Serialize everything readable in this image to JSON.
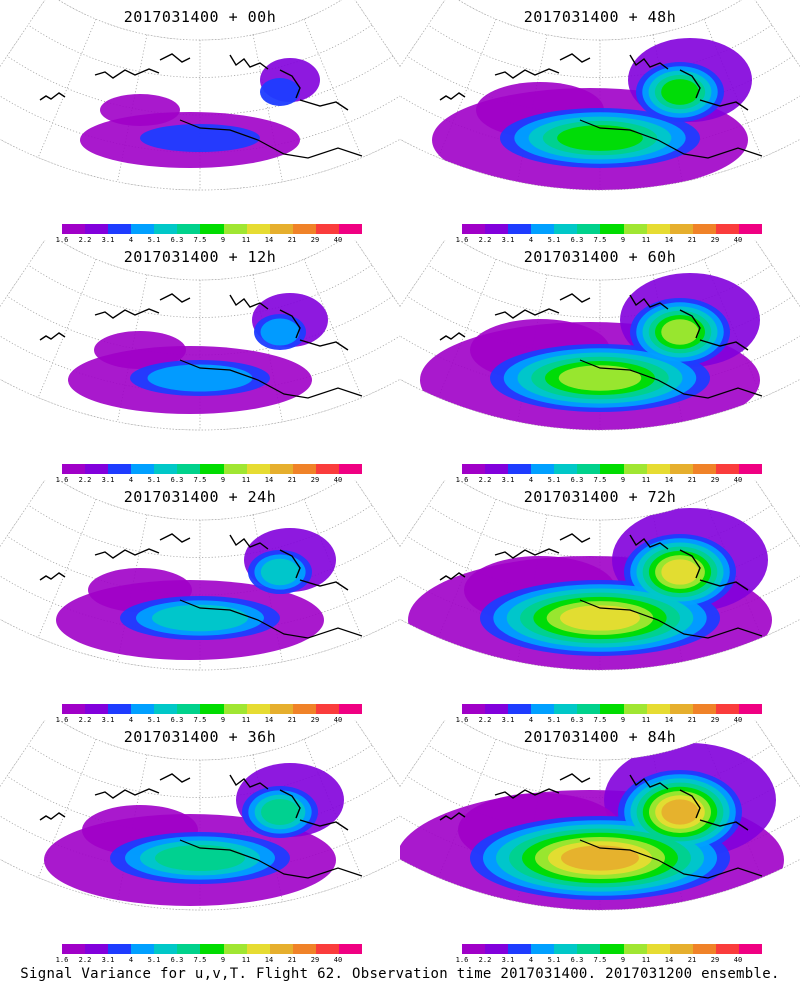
{
  "panels": [
    {
      "title": "2017031400 + 00h",
      "intensity": 0
    },
    {
      "title": "2017031400 + 48h",
      "intensity": 4
    },
    {
      "title": "2017031400 + 12h",
      "intensity": 1
    },
    {
      "title": "2017031400 + 60h",
      "intensity": 5
    },
    {
      "title": "2017031400 + 24h",
      "intensity": 2
    },
    {
      "title": "2017031400 + 72h",
      "intensity": 6
    },
    {
      "title": "2017031400 + 36h",
      "intensity": 3
    },
    {
      "title": "2017031400 + 84h",
      "intensity": 7
    }
  ],
  "colorbar": {
    "labels": [
      "1.6",
      "2.2",
      "3.1",
      "4",
      "5.1",
      "6.3",
      "7.5",
      "9",
      "11",
      "14",
      "21",
      "29",
      "40"
    ],
    "colors": [
      "#a000c8",
      "#8200dc",
      "#1e3cff",
      "#00a0ff",
      "#00c8c8",
      "#00d28c",
      "#00dc00",
      "#a0e632",
      "#e6dc32",
      "#e6af2d",
      "#f08228",
      "#fa3c3c",
      "#f00082"
    ]
  },
  "caption": "Signal Variance for u,v,T. Flight 62. Observation time 2017031400. 2017031200 ensemble."
}
